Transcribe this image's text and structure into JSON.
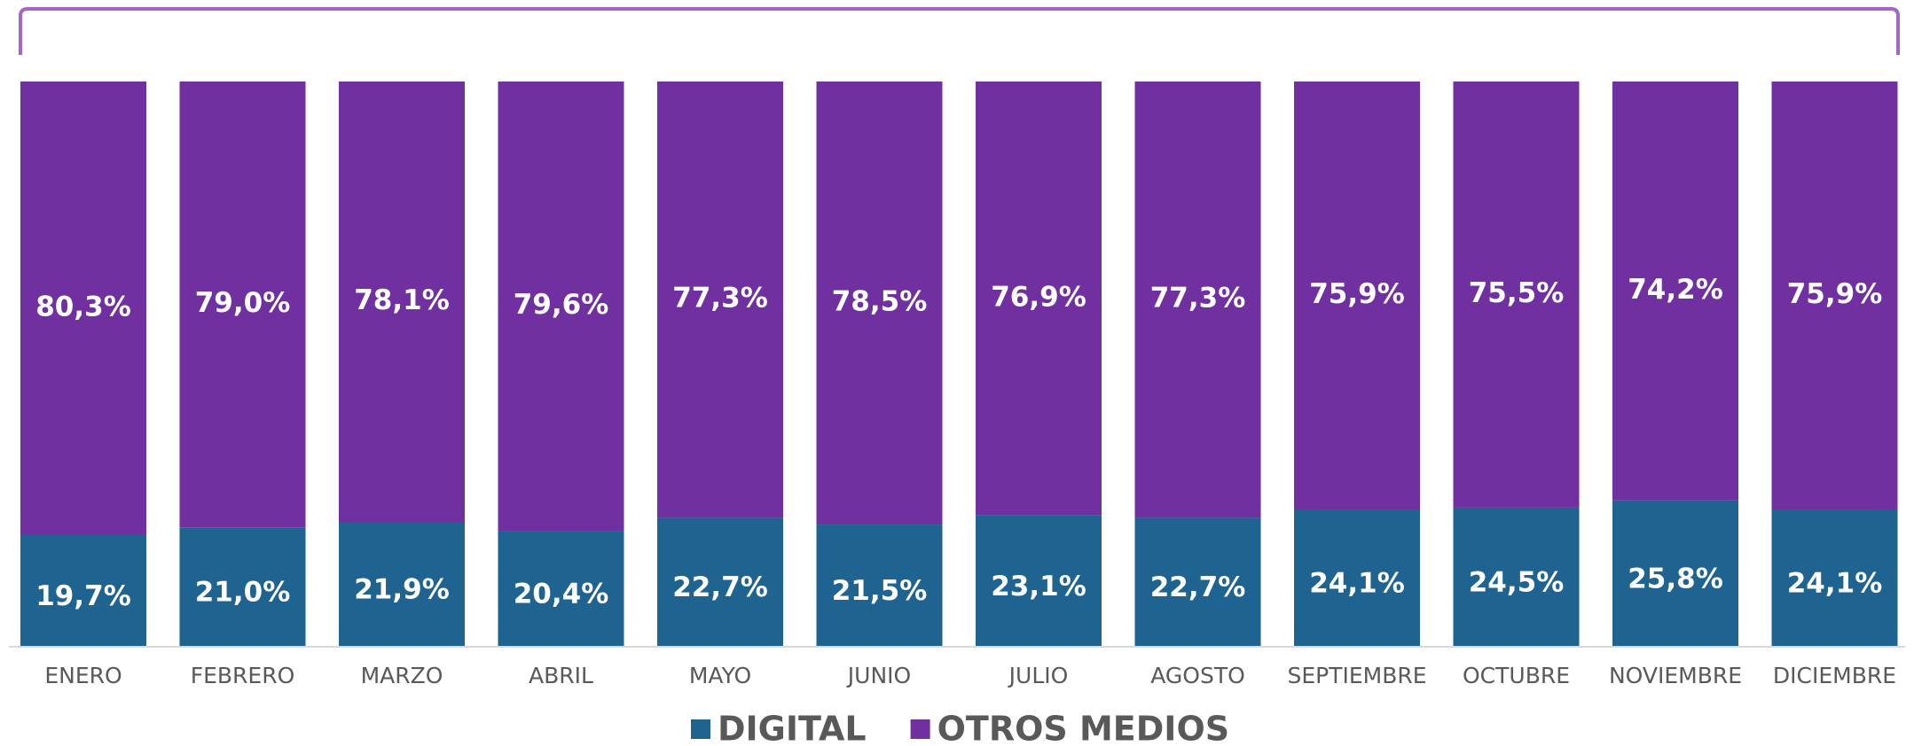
{
  "chart_data": {
    "type": "stacked_bar",
    "categories": [
      "ENERO",
      "FEBRERO",
      "MARZO",
      "ABRIL",
      "MAYO",
      "JUNIO",
      "JULIO",
      "AGOSTO",
      "SEPTIEMBRE",
      "OCTUBRE",
      "NOVIEMBRE",
      "DICIEMBRE"
    ],
    "ylim": [
      0,
      100
    ],
    "legend": "bottom",
    "series": [
      {
        "name": "DIGITAL",
        "color": "#1f6391",
        "values": [
          19.7,
          21.0,
          21.9,
          20.4,
          22.7,
          21.5,
          23.1,
          22.7,
          24.1,
          24.5,
          25.8,
          24.1
        ],
        "value_labels": [
          "19,7%",
          "21,0%",
          "21,9%",
          "20,4%",
          "22,7%",
          "21,5%",
          "23,1%",
          "22,7%",
          "24,1%",
          "24,5%",
          "25,8%",
          "24,1%"
        ]
      },
      {
        "name": "OTROS MEDIOS",
        "color": "#7030a0",
        "values": [
          80.3,
          79.0,
          78.1,
          79.6,
          77.3,
          78.5,
          76.9,
          77.3,
          75.9,
          75.5,
          74.2,
          75.9
        ],
        "value_labels": [
          "80,3%",
          "79,0%",
          "78,1%",
          "79,6%",
          "77,3%",
          "78,5%",
          "76,9%",
          "77,3%",
          "75,9%",
          "75,5%",
          "74,2%",
          "75,9%"
        ]
      }
    ]
  }
}
